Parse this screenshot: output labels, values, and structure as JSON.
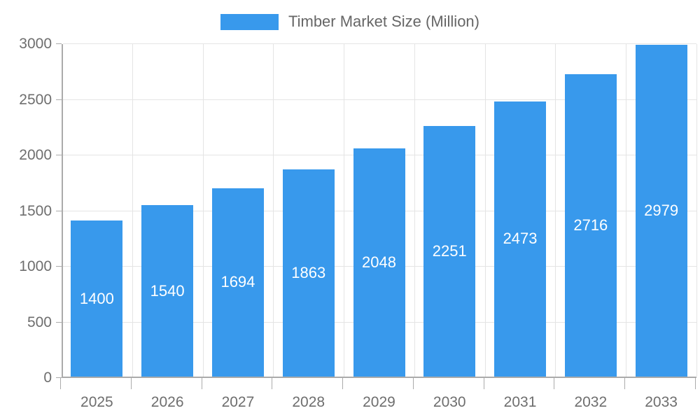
{
  "chart_data": {
    "type": "bar",
    "title": "Timber Market Size (Million)",
    "categories": [
      "2025",
      "2026",
      "2027",
      "2028",
      "2029",
      "2030",
      "2031",
      "2032",
      "2033"
    ],
    "values": [
      1400,
      1540,
      1694,
      1863,
      2048,
      2251,
      2473,
      2716,
      2979
    ],
    "xlabel": "",
    "ylabel": "",
    "ylim": [
      0,
      3000
    ],
    "yticks": [
      0,
      500,
      1000,
      1500,
      2000,
      2500,
      3000
    ],
    "grid": true,
    "legend_position": "top-center",
    "bar_label_position": "inside-center",
    "colors": {
      "bar": "#3899EC",
      "bar_label": "#FFFFFF",
      "grid": "#E4E4E4",
      "axis": "#ABABAB",
      "tick_label": "#6E6E6E",
      "legend_text": "#666666",
      "background": "#FFFFFF"
    }
  }
}
